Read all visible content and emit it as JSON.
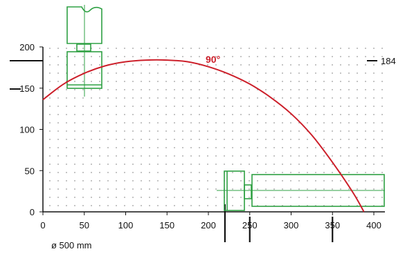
{
  "colors": {
    "axis": "#111111",
    "grid_dot": "#9a9a9a",
    "arc": "#cc1f2a",
    "component": "#2ea043"
  },
  "diagram": {
    "arc_label": "90°",
    "diameter_label": "ø 500 mm",
    "reference_height_label": "184",
    "reference_height_value": 184,
    "reference_left_value": 150,
    "x_marker_values": [
      220,
      250,
      350
    ]
  },
  "chart_data": {
    "type": "line",
    "x_range": [
      0,
      400
    ],
    "y_range": [
      0,
      200
    ],
    "x_ticks": [
      "0",
      "50",
      "100",
      "150",
      "200",
      "250",
      "300",
      "350",
      "400"
    ],
    "y_ticks": [
      "0",
      "50",
      "100",
      "150",
      "200"
    ],
    "grid": true,
    "series": [
      {
        "x": [
          0,
          25,
          50,
          75,
          100,
          125,
          150,
          175,
          200,
          225,
          250,
          275,
          300,
          325,
          350,
          375,
          388
        ],
        "y": [
          136,
          155,
          168,
          177,
          182,
          184,
          184,
          182,
          176,
          167,
          155,
          139,
          119,
          93,
          60,
          23,
          0
        ]
      }
    ]
  }
}
